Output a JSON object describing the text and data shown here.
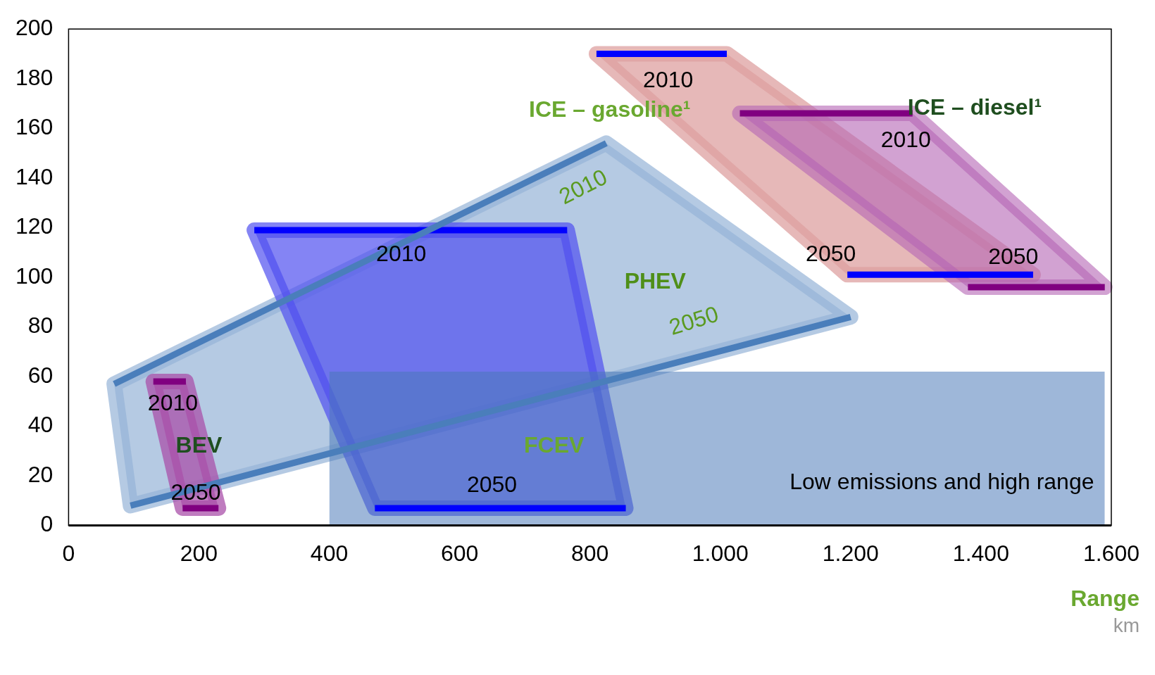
{
  "chart_data": {
    "type": "line",
    "xlabel": "Range",
    "xlim": [
      0,
      1600
    ],
    "ylim": [
      0,
      200
    ],
    "xticks": [
      0,
      200,
      400,
      600,
      800,
      {
        "value": 1000,
        "label": "1.000"
      },
      {
        "value": 1200,
        "label": "1.200"
      },
      {
        "value": 1400,
        "label": "1.400"
      },
      {
        "value": 1600,
        "label": "1.600"
      }
    ],
    "yticks": [
      0,
      20,
      40,
      60,
      80,
      100,
      120,
      140,
      160,
      180,
      200
    ],
    "grid": false,
    "legend": false,
    "marker": "none",
    "line_style": "solid",
    "series": [
      {
        "color": "#0000ff",
        "x": [
          810,
          1010
        ],
        "values": [
          190,
          190
        ]
      },
      {
        "color": "#0000ff",
        "x": [
          1195,
          1480
        ],
        "values": [
          101,
          101
        ]
      },
      {
        "color": "#800080",
        "x": [
          1030,
          1295
        ],
        "values": [
          166,
          166
        ]
      },
      {
        "color": "#800080",
        "x": [
          1380,
          1590
        ],
        "values": [
          96,
          96
        ]
      },
      {
        "color": "#4a7ebb",
        "x": [
          70,
          825
        ],
        "values": [
          57,
          154
        ]
      },
      {
        "color": "#4a7ebb",
        "x": [
          95,
          1200
        ],
        "values": [
          8,
          84
        ]
      },
      {
        "color": "#0000ff",
        "x": [
          285,
          765
        ],
        "values": [
          119,
          119
        ]
      },
      {
        "color": "#0000ff",
        "x": [
          470,
          855
        ],
        "values": [
          7,
          7
        ]
      },
      {
        "color": "#800080",
        "x": [
          130,
          180
        ],
        "values": [
          58,
          58
        ]
      },
      {
        "color": "#800080",
        "x": [
          175,
          230
        ],
        "values": [
          7,
          7
        ]
      },
      {
        "type": "area",
        "color": "#4a78b8",
        "x": [
          400,
          1590
        ],
        "values": [
          62,
          62
        ]
      }
    ],
    "annotations": [
      "2010",
      "ICE – gasoline¹",
      "ICE – diesel¹",
      "2010",
      "2050",
      "2050",
      "2010",
      "2050",
      "PHEV",
      "2010",
      "FCEV",
      "2050",
      "2010",
      "BEV",
      "2050",
      "Low emissions and high range",
      "km"
    ]
  }
}
